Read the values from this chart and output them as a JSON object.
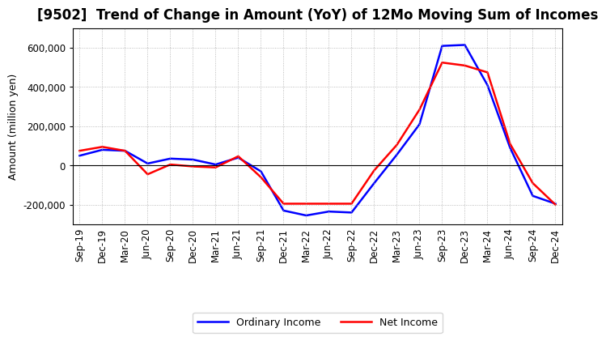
{
  "title": "[9502]  Trend of Change in Amount (YoY) of 12Mo Moving Sum of Incomes",
  "ylabel": "Amount (million yen)",
  "x_labels": [
    "Sep-19",
    "Dec-19",
    "Mar-20",
    "Jun-20",
    "Sep-20",
    "Dec-20",
    "Mar-21",
    "Jun-21",
    "Sep-21",
    "Dec-21",
    "Mar-22",
    "Jun-22",
    "Sep-22",
    "Dec-22",
    "Mar-23",
    "Jun-23",
    "Sep-23",
    "Dec-23",
    "Mar-24",
    "Jun-24",
    "Sep-24",
    "Dec-24"
  ],
  "ordinary_income": [
    50000,
    80000,
    75000,
    10000,
    35000,
    30000,
    5000,
    40000,
    -30000,
    -230000,
    -255000,
    -235000,
    -240000,
    -90000,
    55000,
    210000,
    610000,
    615000,
    410000,
    90000,
    -155000,
    -195000
  ],
  "net_income": [
    75000,
    95000,
    75000,
    -45000,
    5000,
    -5000,
    -10000,
    47000,
    -60000,
    -195000,
    -195000,
    -195000,
    -195000,
    -25000,
    105000,
    285000,
    525000,
    510000,
    475000,
    110000,
    -90000,
    -200000
  ],
  "ordinary_color": "#0000FF",
  "net_color": "#FF0000",
  "line_width": 1.8,
  "background_color": "#FFFFFF",
  "grid_color": "#AAAAAA",
  "ylim": [
    -300000,
    700000
  ],
  "yticks": [
    -200000,
    0,
    200000,
    400000,
    600000
  ],
  "legend_ordinary": "Ordinary Income",
  "legend_net": "Net Income",
  "title_fontsize": 12,
  "axis_fontsize": 9,
  "tick_fontsize": 8.5
}
